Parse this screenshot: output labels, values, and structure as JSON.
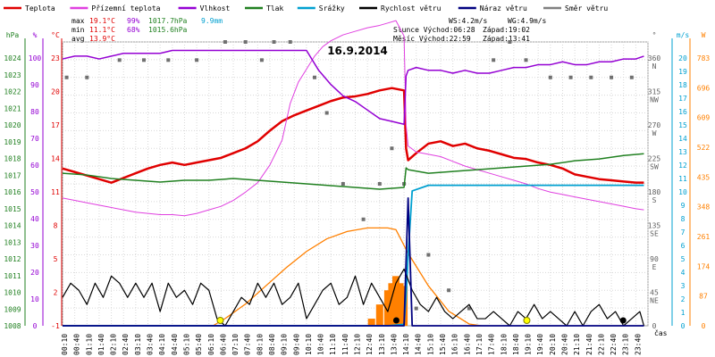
{
  "chart_data": {
    "type": "line",
    "title": "16.9.2014",
    "xlabel": "čas",
    "x_ticks": [
      "00:10",
      "00:40",
      "01:10",
      "01:40",
      "02:10",
      "02:40",
      "03:10",
      "03:40",
      "04:10",
      "04:40",
      "05:10",
      "05:40",
      "06:10",
      "06:40",
      "07:10",
      "07:40",
      "08:10",
      "08:40",
      "09:10",
      "09:40",
      "10:10",
      "10:40",
      "11:10",
      "11:40",
      "12:10",
      "12:40",
      "13:10",
      "13:40",
      "14:10",
      "14:40",
      "15:10",
      "15:40",
      "16:10",
      "16:40",
      "17:10",
      "17:40",
      "18:10",
      "18:40",
      "19:10",
      "19:40",
      "20:10",
      "20:40",
      "21:10",
      "21:40",
      "22:10",
      "22:40",
      "23:10",
      "23:40"
    ],
    "legend": [
      {
        "name": "Teplota",
        "color": "#e00000"
      },
      {
        "name": "Přízemní teplota",
        "color": "#e040e0"
      },
      {
        "name": "Vlhkost",
        "color": "#9400d3"
      },
      {
        "name": "Tlak",
        "color": "#208020"
      },
      {
        "name": "Srážky",
        "color": "#00a0d0"
      },
      {
        "name": "Rychlost větru",
        "color": "#000000"
      },
      {
        "name": "Náraz větru",
        "color": "#000080"
      },
      {
        "name": "Směr větru",
        "color": "#808080"
      }
    ],
    "stats": {
      "max_label": "max",
      "max_temp": "19.1°C",
      "max_hum": "99%",
      "max_press": "1017.7hPa",
      "rain": "9.9mm",
      "min_label": "min",
      "min_temp": "11.1°C",
      "min_hum": "68%",
      "min_press": "1015.6hPa",
      "avg_label": "avg",
      "avg_temp": "13.9°C",
      "ws": "WS:4.2m/s",
      "wg": "WG:4.9m/s",
      "sun_rise": "Slunce Východ:06:28",
      "sun_set": "Západ:19:02",
      "moon_rise": "Měsíc  Východ:22:59",
      "moon_set": "Západ:13:41"
    },
    "axes": {
      "hpa": {
        "label": "hPa",
        "ticks": [
          "1024",
          "1023",
          "1022",
          "1021",
          "1020",
          "1019",
          "1018",
          "1017",
          "1016",
          "1015",
          "1014",
          "1013",
          "1012",
          "1011",
          "1010",
          "1009",
          "1008"
        ]
      },
      "percent": {
        "label": "%",
        "ticks": [
          "100",
          "90",
          "80",
          "70",
          "60",
          "50",
          "40",
          "30",
          "20",
          "10",
          "0"
        ]
      },
      "celsius": {
        "label": "°C",
        "ticks": [
          "23",
          "20",
          "17",
          "14",
          "11",
          "8",
          "5",
          "2",
          "-1"
        ]
      },
      "direction": {
        "label": "°",
        "ticks": [
          "360",
          "315",
          "270",
          "225",
          "180",
          "135",
          "90",
          "45",
          "0"
        ],
        "dirs": [
          "N",
          "NW",
          "W",
          "SW",
          "S",
          "SE",
          "E",
          "NE",
          ""
        ]
      },
      "ms": {
        "label": "m/s",
        "ticks": [
          "20",
          "19",
          "18",
          "17",
          "16",
          "15",
          "14",
          "13",
          "12",
          "11",
          "10",
          "9",
          "8",
          "7",
          "6",
          "5",
          "4",
          "3",
          "2",
          "1",
          "0"
        ]
      },
      "watts": {
        "label": "W",
        "ticks": [
          "783",
          "696",
          "609",
          "522",
          "435",
          "348",
          "261",
          "174",
          "87",
          "0"
        ]
      }
    },
    "series": [
      {
        "name": "Teplota",
        "color": "#e00000",
        "x": [
          0,
          30,
          60,
          90,
          120,
          150,
          180,
          210,
          240,
          270,
          300,
          330,
          360,
          390,
          420,
          450,
          480,
          510,
          540,
          570,
          600,
          630,
          660,
          690,
          720,
          750,
          780,
          810,
          840,
          845,
          850,
          870,
          900,
          930,
          960,
          990,
          1020,
          1050,
          1080,
          1110,
          1140,
          1170,
          1200,
          1230,
          1260,
          1290,
          1320,
          1350,
          1380,
          1410,
          1430
        ],
        "y": [
          12.3,
          12,
          11.7,
          11.4,
          11.1,
          11.5,
          11.9,
          12.3,
          12.6,
          12.8,
          12.6,
          12.8,
          13,
          13.2,
          13.6,
          14,
          14.6,
          15.5,
          16.3,
          16.8,
          17.2,
          17.6,
          18,
          18.3,
          18.4,
          18.6,
          18.9,
          19.1,
          18.9,
          14,
          13,
          13.6,
          14.4,
          14.6,
          14.2,
          14.4,
          14,
          13.8,
          13.5,
          13.2,
          13.1,
          12.8,
          12.6,
          12.3,
          11.8,
          11.6,
          11.4,
          11.3,
          11.2,
          11.1,
          11.1
        ]
      },
      {
        "name": "Přízemní teplota",
        "color": "#e040e0",
        "x": [
          0,
          30,
          60,
          90,
          120,
          150,
          180,
          210,
          240,
          270,
          300,
          330,
          360,
          390,
          420,
          450,
          480,
          510,
          540,
          560,
          580,
          600,
          620,
          640,
          660,
          690,
          720,
          750,
          780,
          800,
          820,
          840,
          845,
          850,
          870,
          900,
          930,
          960,
          990,
          1020,
          1050,
          1080,
          1110,
          1140,
          1170,
          1200,
          1230,
          1260,
          1290,
          1320,
          1350,
          1380,
          1410,
          1430
        ],
        "y": [
          9.8,
          9.6,
          9.4,
          9.2,
          9.0,
          8.8,
          8.6,
          8.5,
          8.4,
          8.4,
          8.3,
          8.5,
          8.8,
          9.1,
          9.6,
          10.3,
          11.1,
          12.6,
          14.7,
          17.8,
          19.6,
          20.7,
          21.8,
          22.6,
          23.1,
          23.6,
          23.9,
          24.2,
          24.4,
          24.6,
          24.8,
          23.5,
          16,
          14.2,
          13.7,
          13.5,
          13.3,
          12.9,
          12.5,
          12.2,
          11.9,
          11.6,
          11.3,
          11,
          10.6,
          10.3,
          10.1,
          9.9,
          9.7,
          9.5,
          9.3,
          9.1,
          8.9,
          8.8
        ]
      },
      {
        "name": "Vlhkost",
        "color": "#9400d3",
        "x": [
          0,
          30,
          60,
          90,
          120,
          150,
          180,
          210,
          240,
          270,
          300,
          330,
          360,
          390,
          420,
          450,
          480,
          510,
          540,
          570,
          600,
          630,
          660,
          690,
          720,
          750,
          780,
          810,
          840,
          845,
          850,
          870,
          900,
          930,
          960,
          990,
          1020,
          1050,
          1080,
          1110,
          1140,
          1170,
          1200,
          1230,
          1260,
          1290,
          1320,
          1350,
          1380,
          1410,
          1430
        ],
        "y": [
          94,
          95,
          95,
          94,
          95,
          96,
          96,
          96,
          96,
          97,
          97,
          97,
          97,
          97,
          97,
          97,
          97,
          97,
          97,
          97,
          97,
          90,
          85,
          81,
          79,
          76,
          73,
          72,
          71,
          88,
          90,
          91,
          90,
          90,
          89,
          90,
          89,
          89,
          90,
          91,
          91,
          92,
          92,
          93,
          92,
          92,
          93,
          93,
          94,
          94,
          95
        ]
      },
      {
        "name": "Tlak",
        "color": "#208020",
        "x": [
          0,
          60,
          120,
          180,
          240,
          300,
          360,
          420,
          480,
          540,
          600,
          660,
          720,
          780,
          840,
          845,
          850,
          900,
          960,
          1020,
          1080,
          1140,
          1200,
          1260,
          1320,
          1380,
          1430
        ],
        "y": [
          1016.6,
          1016.5,
          1016.3,
          1016.2,
          1016.1,
          1016.2,
          1016.2,
          1016.3,
          1016.2,
          1016.1,
          1016.0,
          1015.9,
          1015.8,
          1015.7,
          1015.8,
          1016.9,
          1016.8,
          1016.6,
          1016.7,
          1016.8,
          1016.9,
          1017.0,
          1017.1,
          1017.3,
          1017.4,
          1017.6,
          1017.7
        ]
      },
      {
        "name": "Srážky",
        "color": "#00a0d0",
        "x": [
          0,
          300,
          600,
          800,
          840,
          845,
          850,
          860,
          900,
          1000,
          1200,
          1430
        ],
        "y": [
          0,
          0,
          0,
          0,
          0.1,
          2,
          5,
          9.5,
          9.9,
          9.9,
          9.9,
          9.9
        ]
      },
      {
        "name": "Rychlost větru",
        "color": "#000000",
        "x": [
          0,
          20,
          40,
          60,
          80,
          100,
          120,
          140,
          160,
          180,
          200,
          220,
          240,
          260,
          280,
          300,
          320,
          340,
          360,
          380,
          400,
          420,
          440,
          460,
          480,
          500,
          520,
          540,
          560,
          580,
          600,
          620,
          640,
          660,
          680,
          700,
          720,
          740,
          760,
          780,
          800,
          820,
          840,
          860,
          880,
          900,
          920,
          940,
          960,
          980,
          1000,
          1020,
          1040,
          1060,
          1080,
          1100,
          1120,
          1140,
          1160,
          1180,
          1200,
          1220,
          1240,
          1260,
          1280,
          1300,
          1320,
          1340,
          1360,
          1380,
          1400,
          1420,
          1430
        ],
        "y": [
          2,
          3,
          2.5,
          1.5,
          3,
          2,
          3.5,
          3,
          2,
          3,
          2,
          3,
          1,
          3,
          2,
          2.5,
          1.5,
          3,
          2.5,
          0.5,
          0,
          1,
          2,
          1.5,
          3,
          2,
          3,
          1.5,
          2,
          3,
          0.5,
          1.5,
          2.5,
          3,
          1.5,
          2,
          3.5,
          1.5,
          3,
          2,
          1,
          3,
          4,
          2.5,
          1.5,
          1,
          2,
          1,
          0.5,
          1,
          1.5,
          0.5,
          0.5,
          1,
          0.5,
          0,
          1,
          0.5,
          1.5,
          0.5,
          1,
          0.5,
          0,
          1,
          0,
          1,
          1.5,
          0.5,
          1,
          0,
          0.5,
          1,
          0
        ]
      },
      {
        "name": "Náraz větru",
        "color": "#000080",
        "x": [
          0,
          600,
          840,
          845,
          850,
          860,
          1430
        ],
        "y": [
          0,
          0,
          0,
          4.5,
          9,
          0,
          0
        ]
      },
      {
        "name": "Solar",
        "color": "#ff8000",
        "x": [
          370,
          400,
          450,
          500,
          550,
          600,
          650,
          700,
          750,
          800,
          820,
          850,
          900,
          950,
          1000,
          1030
        ],
        "y": [
          0,
          20,
          60,
          110,
          160,
          205,
          240,
          260,
          270,
          270,
          265,
          200,
          110,
          40,
          5,
          0
        ]
      }
    ]
  }
}
